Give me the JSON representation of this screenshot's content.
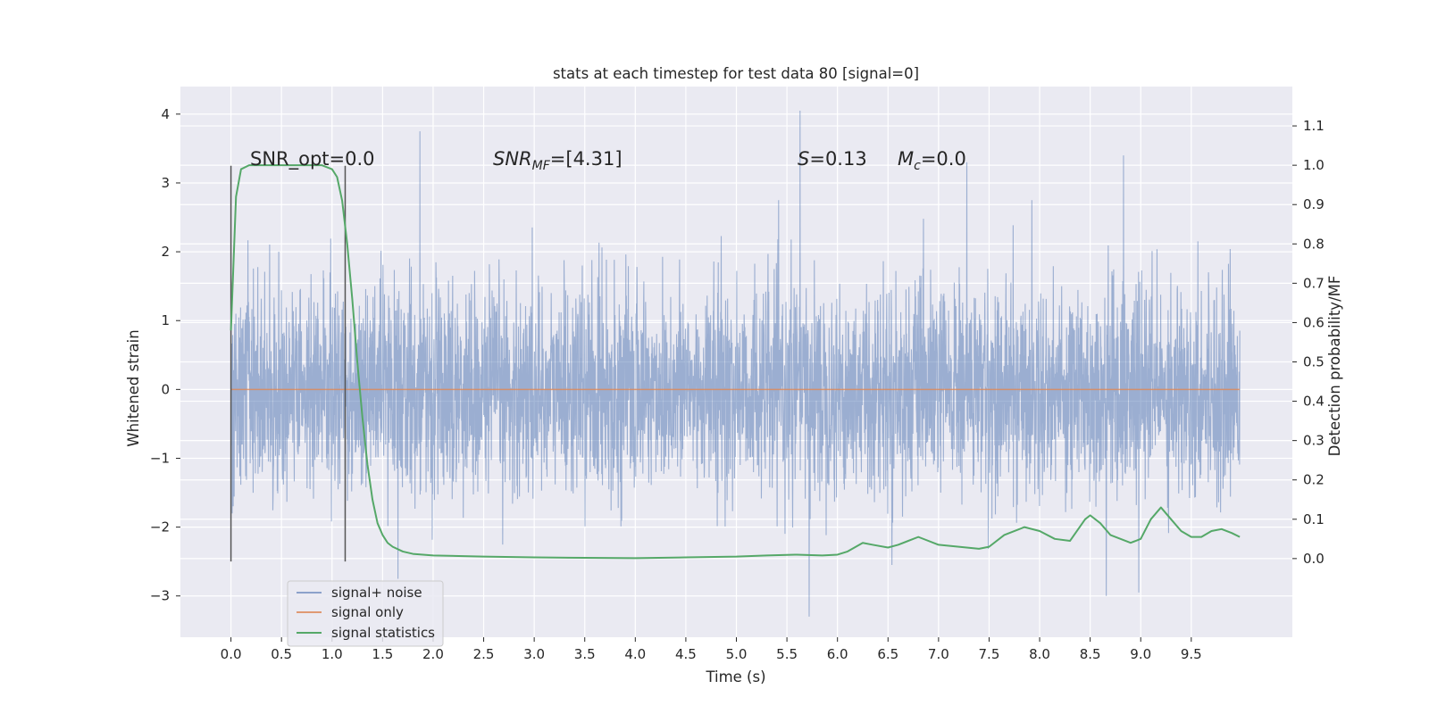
{
  "chart_data": {
    "type": "line",
    "title": "stats at each timestep for test data 80 [signal=0]",
    "xlabel": "Time (s)",
    "ylabel": "Whitened strain",
    "y2label": "Detection probability/MF",
    "xlim": [
      -0.5,
      10.5
    ],
    "ylim": [
      -3.6,
      4.4
    ],
    "y2lim": [
      -0.2,
      1.2
    ],
    "x_ticks": [
      0.0,
      0.5,
      1.0,
      1.5,
      2.0,
      2.5,
      3.0,
      3.5,
      4.0,
      4.5,
      5.0,
      5.5,
      6.0,
      6.5,
      7.0,
      7.5,
      8.0,
      8.5,
      9.0,
      9.5
    ],
    "x_tick_labels": [
      "0.0",
      "0.5",
      "1.0",
      "1.5",
      "2.0",
      "2.5",
      "3.0",
      "3.5",
      "4.0",
      "4.5",
      "5.0",
      "5.5",
      "6.0",
      "6.5",
      "7.0",
      "7.5",
      "8.0",
      "8.5",
      "9.0",
      "9.5"
    ],
    "y_ticks": [
      -3,
      -2,
      -1,
      0,
      1,
      2,
      3,
      4
    ],
    "y_tick_labels": [
      "−3",
      "−2",
      "−1",
      "0",
      "1",
      "2",
      "3",
      "4"
    ],
    "y2_ticks": [
      0.0,
      0.1,
      0.2,
      0.3,
      0.4,
      0.5,
      0.6,
      0.7,
      0.8,
      0.9,
      1.0,
      1.1
    ],
    "y2_tick_labels": [
      "0.0",
      "0.1",
      "0.2",
      "0.3",
      "0.4",
      "0.5",
      "0.6",
      "0.7",
      "0.8",
      "0.9",
      "1.0",
      "1.1"
    ],
    "grid": true,
    "legend_position": "lower-left",
    "colors": {
      "background": "#eaeaf2",
      "grid": "#ffffff",
      "signal_noise": "#4c72b0",
      "signal_only": "#dd8452",
      "signal_statistics": "#55a868",
      "vlines": "#555555"
    },
    "annotations": {
      "snr_opt": "SNR_opt=0.0",
      "snr_mf_italic": "SNR",
      "snr_mf_sub": "MF",
      "snr_mf_rest": "=[4.31]",
      "s_italic": "S",
      "s_rest": "=0.13",
      "mc_italic": "M",
      "mc_sub": "c",
      "mc_rest": "=0.0"
    },
    "vertical_lines": [
      {
        "x": 0.0,
        "y_top": 3.25,
        "y_bottom": -2.5
      },
      {
        "x": 1.13,
        "y_top": 3.25,
        "y_bottom": -2.5
      }
    ],
    "series": [
      {
        "name": "signal+ noise",
        "axis": "left",
        "style": "dense-noise",
        "x_range": [
          0.0,
          9.98
        ],
        "sigma": 0.75,
        "peaks": [
          {
            "x": 1.87,
            "y": 3.75
          },
          {
            "x": 5.63,
            "y": 4.05
          },
          {
            "x": 8.83,
            "y": 3.4
          },
          {
            "x": 7.28,
            "y": 3.3
          },
          {
            "x": 5.72,
            "y": -3.3
          },
          {
            "x": 8.66,
            "y": -3.0
          },
          {
            "x": 8.98,
            "y": -2.95
          }
        ]
      },
      {
        "name": "signal only",
        "axis": "left",
        "x": [
          0.0,
          9.98
        ],
        "y": [
          0.0,
          0.0
        ]
      },
      {
        "name": "signal statistics",
        "axis": "right",
        "x": [
          0.0,
          0.05,
          0.1,
          0.18,
          0.3,
          0.5,
          0.7,
          0.9,
          1.0,
          1.05,
          1.1,
          1.15,
          1.2,
          1.25,
          1.3,
          1.35,
          1.4,
          1.45,
          1.5,
          1.55,
          1.6,
          1.7,
          1.8,
          2.0,
          2.5,
          3.0,
          3.5,
          4.0,
          4.5,
          5.0,
          5.3,
          5.6,
          5.85,
          6.0,
          6.1,
          6.25,
          6.35,
          6.5,
          6.6,
          6.8,
          7.0,
          7.2,
          7.4,
          7.5,
          7.65,
          7.85,
          8.0,
          8.15,
          8.3,
          8.45,
          8.5,
          8.6,
          8.7,
          8.8,
          8.9,
          9.0,
          9.1,
          9.2,
          9.3,
          9.4,
          9.5,
          9.6,
          9.7,
          9.8,
          9.9,
          9.98
        ],
        "y": [
          0.58,
          0.92,
          0.99,
          1.0,
          1.0,
          1.0,
          1.0,
          1.0,
          0.99,
          0.97,
          0.91,
          0.8,
          0.66,
          0.5,
          0.36,
          0.24,
          0.15,
          0.09,
          0.06,
          0.04,
          0.03,
          0.018,
          0.012,
          0.008,
          0.005,
          0.003,
          0.002,
          0.001,
          0.003,
          0.005,
          0.008,
          0.01,
          0.008,
          0.01,
          0.018,
          0.04,
          0.035,
          0.028,
          0.035,
          0.055,
          0.035,
          0.03,
          0.025,
          0.03,
          0.06,
          0.08,
          0.07,
          0.05,
          0.045,
          0.1,
          0.11,
          0.09,
          0.06,
          0.05,
          0.04,
          0.05,
          0.1,
          0.13,
          0.1,
          0.07,
          0.055,
          0.055,
          0.07,
          0.075,
          0.065,
          0.055
        ]
      }
    ]
  }
}
